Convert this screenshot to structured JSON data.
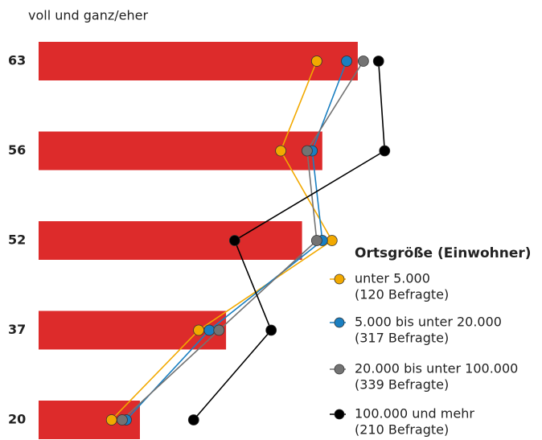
{
  "chart_data": {
    "type": "bar",
    "title": "voll und ganz/eher",
    "categories": [
      null,
      null,
      null,
      null,
      null
    ],
    "values": [
      63,
      56,
      52,
      37,
      20
    ],
    "color": "#dd2b2b",
    "legend_title": "Ortsgröße (Einwohner)",
    "series": [
      {
        "name": "unter 5.000",
        "note": "(120 Befragte)",
        "color": "#f2a900",
        "values": [
          54.9,
          47.8,
          57.9,
          31.6,
          14.4
        ]
      },
      {
        "name": "5.000 bis unter 20.000",
        "note": "(317 Befragte)",
        "color": "#1a7fc1",
        "values": [
          60.8,
          54.0,
          56.0,
          33.7,
          17.3
        ]
      },
      {
        "name": "20.000 bis unter 100.000",
        "note": "(339 Befragte)",
        "color": "#737373",
        "values": [
          64.1,
          53.0,
          54.9,
          35.6,
          16.5
        ]
      },
      {
        "name": "100.000 und mehr",
        "note": "(210 Befragte)",
        "color": "#000000",
        "values": [
          67.1,
          68.3,
          38.7,
          45.9,
          30.6
        ]
      }
    ]
  }
}
